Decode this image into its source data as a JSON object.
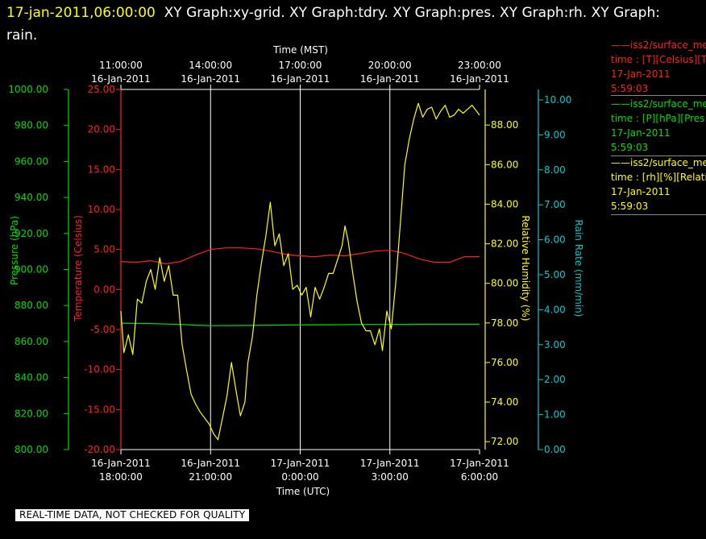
{
  "title": {
    "timestamp": "17-jan-2011,06:00:00",
    "text": "XY Graph:xy-grid.  XY Graph:tdry.  XY Graph:pres.  XY Graph:rh.  XY Graph: rain."
  },
  "notice": "REAL-TIME DATA, NOT CHECKED FOR QUALITY",
  "legend": [
    {
      "dash": "——",
      "name": "iss2/surface_me",
      "units": "time : [T][Celsius][T",
      "date": "17-Jan-2011",
      "time": "5:59:03",
      "color": "#ff2020"
    },
    {
      "dash": "——",
      "name": "iss2/surface_me",
      "units": "time : [P][hPa][Pres",
      "date": "17-Jan-2011",
      "time": "5:59:03",
      "color": "#00dd00"
    },
    {
      "dash": "——",
      "name": "iss2/surface_me",
      "units": "time : [rh][%][Relati",
      "date": "17-Jan-2011",
      "time": "5:59:03",
      "color": "#ffff00"
    }
  ],
  "colors": {
    "temperature": "#ff2020",
    "pressure": "#00dd00",
    "humidity": "#ffff00",
    "rain": "#00cccc",
    "axis": "#ffffff",
    "grid": "#ffffff"
  },
  "chart_data": {
    "type": "line",
    "grid": true,
    "x_range_utc": [
      "16-Jan-2011 18:00:00",
      "17-Jan-2011 6:00:00"
    ],
    "x_bottom": {
      "label": "Time (UTC)",
      "ticks": [
        {
          "date": "16-Jan-2011",
          "time": "18:00:00"
        },
        {
          "date": "16-Jan-2011",
          "time": "21:00:00"
        },
        {
          "date": "17-Jan-2011",
          "time": "0:00:00"
        },
        {
          "date": "17-Jan-2011",
          "time": "3:00:00"
        },
        {
          "date": "17-Jan-2011",
          "time": "6:00:00"
        }
      ]
    },
    "x_top": {
      "label": "Time (MST)",
      "ticks": [
        {
          "date": "16-Jan-2011",
          "time": "11:00:00"
        },
        {
          "date": "16-Jan-2011",
          "time": "14:00:00"
        },
        {
          "date": "16-Jan-2011",
          "time": "17:00:00"
        },
        {
          "date": "16-Jan-2011",
          "time": "20:00:00"
        },
        {
          "date": "16-Jan-2011",
          "time": "23:00:00"
        }
      ]
    },
    "axes": {
      "pressure": {
        "label": "Pressure (hPa)",
        "range": [
          800,
          1000
        ],
        "ticks": [
          "1000.00",
          "980.00",
          "960.00",
          "940.00",
          "920.00",
          "900.00",
          "880.00",
          "860.00",
          "840.00",
          "820.00",
          "800.00"
        ]
      },
      "temperature": {
        "label": "Temperature (Celsius)",
        "range": [
          -20,
          25
        ],
        "ticks": [
          "25.00",
          "20.00",
          "15.00",
          "10.00",
          "5.00",
          "0.00",
          "-5.00",
          "-10.00",
          "-15.00",
          "-20.00"
        ]
      },
      "humidity": {
        "label": "Relative Humidity (%)",
        "range": [
          71.6,
          89.8
        ],
        "ticks": [
          "88.00",
          "86.00",
          "84.00",
          "82.00",
          "80.00",
          "78.00",
          "76.00",
          "74.00",
          "72.00"
        ]
      },
      "rain": {
        "label": "Rain Rate (mm/min)",
        "range": [
          0,
          10.3
        ],
        "ticks": [
          "10.00",
          "9.00",
          "8.00",
          "7.00",
          "6.00",
          "5.00",
          "4.00",
          "3.00",
          "2.00",
          "1.00",
          "0.00"
        ]
      }
    },
    "series": [
      {
        "key": "temperature",
        "x_hours": [
          0,
          0.5,
          1,
          1.5,
          2,
          2.5,
          3,
          3.5,
          4,
          4.5,
          5,
          5.5,
          6,
          6.5,
          7,
          7.5,
          8,
          8.5,
          9,
          9.5,
          10,
          10.5,
          11,
          11.5,
          12
        ],
        "values": [
          3.5,
          3.4,
          3.6,
          3.2,
          3.5,
          4.3,
          5.0,
          5.2,
          5.2,
          5.1,
          4.8,
          4.4,
          4.2,
          4.1,
          4.3,
          4.2,
          4.5,
          4.8,
          4.9,
          4.5,
          3.8,
          3.4,
          3.4,
          4.1,
          4.1
        ]
      },
      {
        "key": "pressure",
        "x_hours": [
          0,
          1,
          2,
          2.5,
          3,
          4,
          5,
          6,
          7,
          8,
          9,
          10,
          11,
          12
        ],
        "values": [
          870.2,
          870.0,
          869.5,
          869.1,
          868.8,
          868.9,
          869.1,
          869.2,
          869.3,
          869.5,
          869.5,
          869.6,
          869.6,
          869.6
        ]
      },
      {
        "key": "humidity",
        "x_hours": [
          0,
          0.1,
          0.25,
          0.4,
          0.55,
          0.7,
          0.85,
          1,
          1.15,
          1.3,
          1.45,
          1.6,
          1.75,
          1.9,
          2.05,
          2.2,
          2.35,
          2.5,
          2.65,
          2.8,
          2.95,
          3.1,
          3.25,
          3.4,
          3.55,
          3.7,
          3.85,
          4,
          4.15,
          4.25,
          4.4,
          4.55,
          4.7,
          4.85,
          5,
          5.15,
          5.3,
          5.45,
          5.6,
          5.75,
          5.9,
          6.05,
          6.2,
          6.35,
          6.5,
          6.65,
          6.8,
          6.95,
          7.1,
          7.25,
          7.4,
          7.5,
          7.6,
          7.75,
          7.9,
          8.05,
          8.2,
          8.35,
          8.5,
          8.65,
          8.75,
          8.9,
          9.05,
          9.2,
          9.35,
          9.5,
          9.65,
          9.8,
          9.95,
          10.1,
          10.25,
          10.4,
          10.55,
          10.7,
          10.85,
          11,
          11.15,
          11.3,
          11.45,
          11.6,
          11.75,
          11.9,
          12
        ],
        "values": [
          78.6,
          76.5,
          77.4,
          76.4,
          79.2,
          79.0,
          80.1,
          80.7,
          79.7,
          81.3,
          80.1,
          80.9,
          79.4,
          79.4,
          76.9,
          75.6,
          74.4,
          73.9,
          73.5,
          73.2,
          72.9,
          72.4,
          72.1,
          73.2,
          74.3,
          76.0,
          74.6,
          73.3,
          74.0,
          76.0,
          77.3,
          79.4,
          81.0,
          82.4,
          84.1,
          81.9,
          82.5,
          80.9,
          81.5,
          79.7,
          79.9,
          79.4,
          79.8,
          78.3,
          79.8,
          79.2,
          79.8,
          80.5,
          80.5,
          81.2,
          81.9,
          82.9,
          82.2,
          80.6,
          79.1,
          78.0,
          77.6,
          77.6,
          76.9,
          77.7,
          76.6,
          78.6,
          77.7,
          80.1,
          83.0,
          86.0,
          87.3,
          88.3,
          89.1,
          88.4,
          88.8,
          88.9,
          88.3,
          88.7,
          89.0,
          88.4,
          88.5,
          88.8,
          88.6,
          88.8,
          89.0,
          88.7,
          88.5
        ]
      },
      {
        "key": "rain",
        "x_hours": [],
        "values": []
      }
    ]
  }
}
